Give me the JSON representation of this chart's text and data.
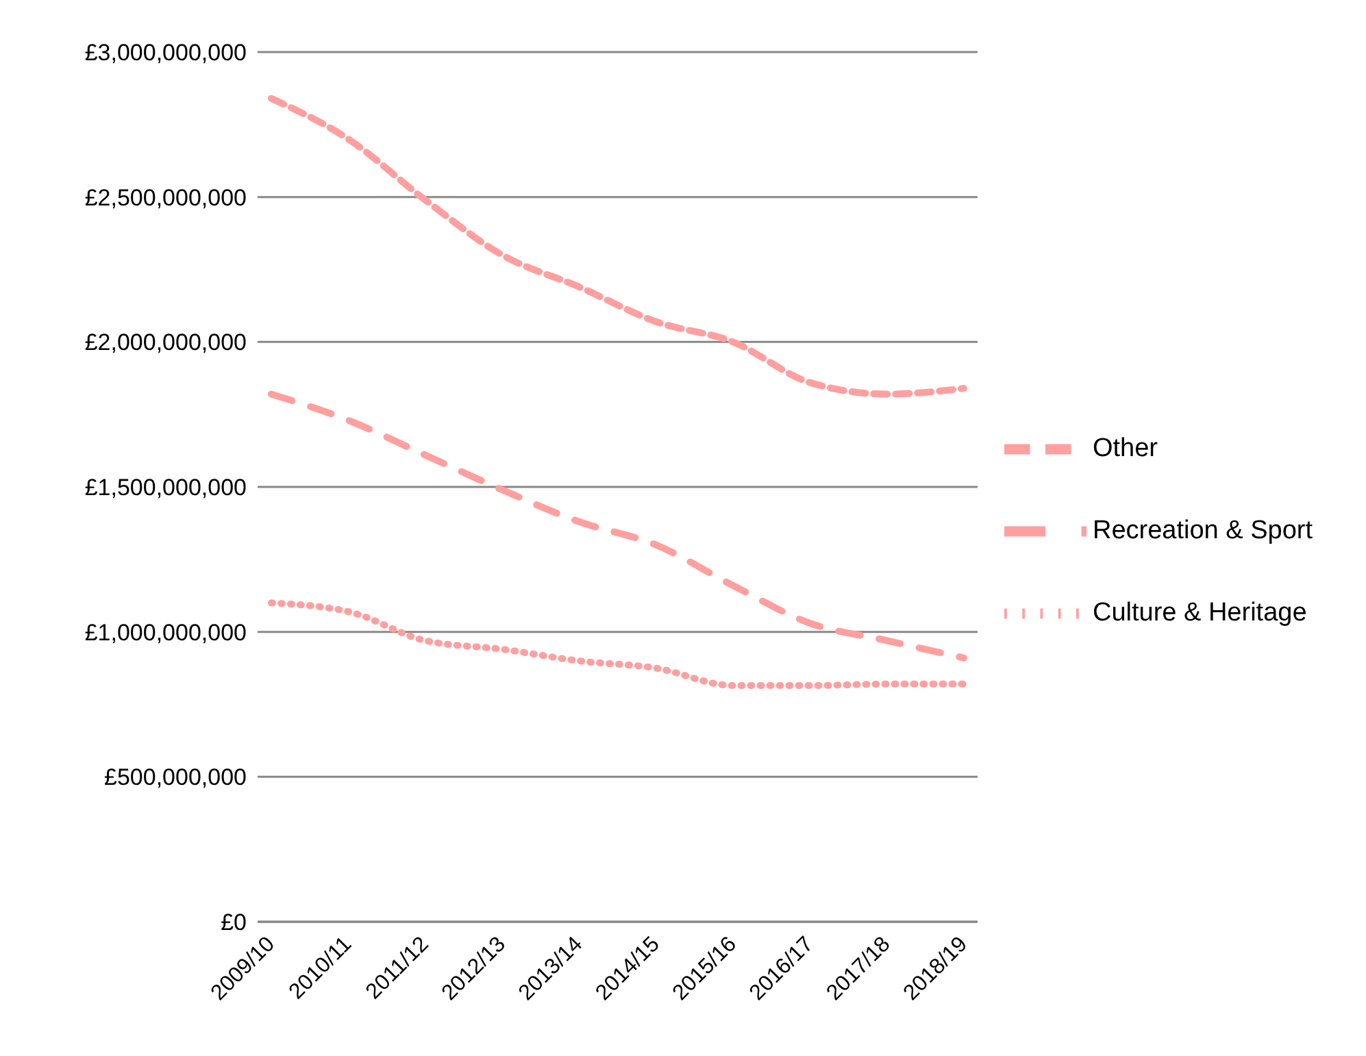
{
  "chart_data": {
    "type": "line",
    "categories": [
      "2009/10",
      "2010/11",
      "2011/12",
      "2012/13",
      "2013/14",
      "2014/15",
      "2015/16",
      "2016/17",
      "2017/18",
      "2018/19"
    ],
    "series": [
      {
        "name": "Other",
        "color": "#ff9f9f",
        "line_style": "dashed",
        "values": [
          2840000000,
          2700000000,
          2490000000,
          2300000000,
          2190000000,
          2070000000,
          2000000000,
          1860000000,
          1820000000,
          1840000000
        ]
      },
      {
        "name": "Recreation & Sport",
        "color": "#ff9f9f",
        "line_style": "dashed",
        "values": [
          1820000000,
          1730000000,
          1610000000,
          1490000000,
          1380000000,
          1300000000,
          1160000000,
          1030000000,
          970000000,
          910000000
        ]
      },
      {
        "name": "Culture & Heritage",
        "color": "#ff9f9f",
        "line_style": "dotted",
        "values": [
          1100000000,
          1070000000,
          970000000,
          940000000,
          900000000,
          875000000,
          815000000,
          815000000,
          820000000,
          820000000
        ]
      }
    ],
    "ylim": [
      0,
      3000000000
    ],
    "yticks": [
      {
        "value": 0,
        "label": "£0"
      },
      {
        "value": 500000000,
        "label": "£500,000,000"
      },
      {
        "value": 1000000000,
        "label": "£1,000,000,000"
      },
      {
        "value": 1500000000,
        "label": "£1,500,000,000"
      },
      {
        "value": 2000000000,
        "label": "£2,000,000,000"
      },
      {
        "value": 2500000000,
        "label": "£2,500,000,000"
      },
      {
        "value": 3000000000,
        "label": "£3,000,000,000"
      }
    ],
    "grid": "y",
    "legend": "right",
    "marker": "none"
  }
}
